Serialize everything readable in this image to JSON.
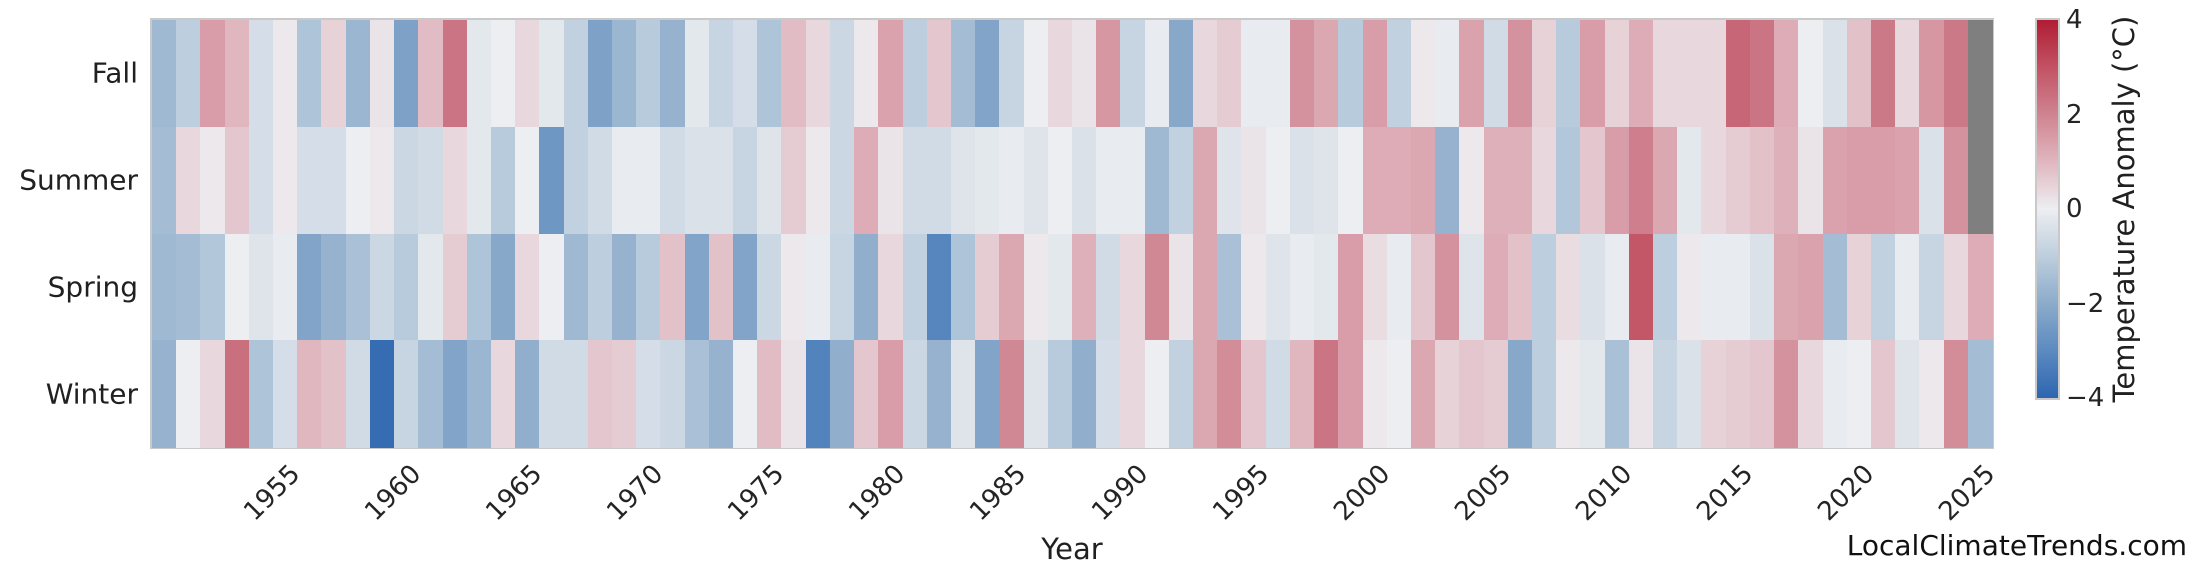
{
  "watermark": "LocalClimateTrends.com",
  "chart_data": {
    "type": "heatmap",
    "title": "",
    "xlabel": "Year",
    "row_categories": [
      "Fall",
      "Summer",
      "Spring",
      "Winter"
    ],
    "x_years": {
      "start": 1950,
      "end": 2025
    },
    "x_tick_labels": [
      "1955",
      "1960",
      "1965",
      "1970",
      "1975",
      "1980",
      "1985",
      "1990",
      "1995",
      "2000",
      "2005",
      "2010",
      "2015",
      "2020",
      "2025"
    ],
    "colorbar": {
      "label": "Temperature Anomaly (°C)",
      "tick_labels": [
        "4",
        "2",
        "0",
        "−2",
        "−4"
      ],
      "tick_values": [
        4,
        2,
        0,
        -2,
        -4
      ],
      "vmin": -4,
      "vmax": 4,
      "position": "right"
    },
    "colormap_stops": [
      {
        "v": -4,
        "c": "#2d66af"
      },
      {
        "v": -3,
        "c": "#5c8ac0"
      },
      {
        "v": -2,
        "c": "#8cabca"
      },
      {
        "v": -1,
        "c": "#bdcede"
      },
      {
        "v": 0,
        "c": "#edeef1"
      },
      {
        "v": 1,
        "c": "#e0b6bf"
      },
      {
        "v": 2,
        "c": "#cf8390"
      },
      {
        "v": 3,
        "c": "#c25264"
      },
      {
        "v": 4,
        "c": "#b01c33"
      }
    ],
    "missing_color": "#7f7f7f",
    "missing_cells": [
      [
        "Fall",
        2025
      ],
      [
        "Summer",
        2025
      ]
    ],
    "grid": false,
    "series": [
      {
        "name": "Fall",
        "values": [
          -1.6,
          -1.0,
          1.5,
          1.0,
          -0.5,
          0.1,
          -1.3,
          0.5,
          -1.7,
          0.2,
          -2.3,
          0.9,
          2.3,
          -0.2,
          0.0,
          0.4,
          -0.2,
          -0.9,
          -2.3,
          -1.7,
          -1.1,
          -1.8,
          -0.2,
          -0.8,
          -0.5,
          -1.3,
          0.9,
          0.4,
          -0.7,
          0.1,
          1.4,
          -1.0,
          0.7,
          -1.5,
          -2.2,
          -0.8,
          0.0,
          0.4,
          0.2,
          1.6,
          -0.8,
          -0.1,
          -2.1,
          0.4,
          0.6,
          -0.1,
          -0.1,
          1.7,
          1.3,
          -1.1,
          1.5,
          -0.9,
          0.1,
          -0.1,
          1.4,
          -0.6,
          1.7,
          0.5,
          -1.1,
          1.5,
          0.5,
          1.2,
          0.4,
          0.4,
          0.4,
          2.6,
          2.3,
          1.2,
          0.0,
          -0.4,
          0.8,
          2.2,
          0.4,
          1.6,
          2.2,
          null
        ]
      },
      {
        "name": "Summer",
        "values": [
          -1.5,
          0.4,
          0.1,
          0.7,
          -0.5,
          0.1,
          -0.5,
          -0.5,
          0.0,
          0.1,
          -0.7,
          -0.6,
          0.4,
          -0.2,
          -1.1,
          0.0,
          -2.6,
          -0.9,
          -0.6,
          -0.1,
          -0.1,
          -0.6,
          -0.4,
          -0.4,
          -0.8,
          -0.3,
          0.6,
          0.1,
          -0.7,
          1.2,
          0.2,
          -0.6,
          -0.6,
          -0.3,
          -0.2,
          -0.1,
          -0.3,
          0.0,
          -0.4,
          -0.1,
          -0.1,
          -1.6,
          -0.9,
          1.3,
          -0.3,
          0.2,
          0.0,
          -0.4,
          -0.3,
          0.0,
          1.2,
          1.2,
          1.3,
          -1.8,
          0.1,
          1.1,
          1.1,
          0.4,
          -1.2,
          0.7,
          1.5,
          2.1,
          1.3,
          -0.2,
          0.4,
          0.6,
          0.8,
          1.1,
          0.2,
          1.4,
          1.5,
          1.5,
          1.4,
          -0.4,
          1.7,
          null
        ]
      },
      {
        "name": "Spring",
        "values": [
          -1.6,
          -1.5,
          -1.2,
          0.0,
          -0.3,
          -0.1,
          -2.2,
          -1.8,
          -1.4,
          -0.7,
          -1.1,
          -0.2,
          0.6,
          -1.3,
          -2.1,
          0.4,
          0.0,
          -1.6,
          -1.0,
          -1.8,
          -1.1,
          0.8,
          -2.2,
          0.8,
          -2.2,
          -0.7,
          0.1,
          -0.1,
          -0.8,
          -1.9,
          0.4,
          -0.9,
          -3.1,
          -1.3,
          0.6,
          1.3,
          0.1,
          -0.2,
          1.1,
          -0.6,
          0.4,
          1.9,
          0.2,
          1.3,
          -1.4,
          0.1,
          -0.3,
          -0.1,
          -0.2,
          1.5,
          0.3,
          -0.1,
          0.7,
          1.7,
          -0.3,
          1.2,
          0.8,
          -1.0,
          0.3,
          -0.4,
          -0.1,
          2.9,
          -1.0,
          0.1,
          -0.1,
          -0.1,
          -0.4,
          1.3,
          1.4,
          -1.5,
          0.5,
          -0.9,
          -0.1,
          -0.8,
          0.4,
          1.2
        ]
      },
      {
        "name": "Winter",
        "values": [
          -1.8,
          0.0,
          0.4,
          2.4,
          -1.3,
          -0.5,
          1.0,
          0.8,
          -0.6,
          -3.8,
          -0.8,
          -1.5,
          -2.2,
          -1.7,
          0.4,
          -1.9,
          -0.6,
          -0.6,
          0.7,
          0.6,
          -0.5,
          -0.7,
          -1.4,
          -1.8,
          0.0,
          0.9,
          0.2,
          -3.2,
          -1.9,
          0.7,
          1.5,
          -0.7,
          -1.8,
          -0.3,
          -2.2,
          1.9,
          -0.3,
          -1.1,
          -1.9,
          -0.5,
          0.4,
          0.0,
          -0.9,
          1.3,
          1.8,
          0.7,
          -0.6,
          1.0,
          2.3,
          1.5,
          0.1,
          0.0,
          1.3,
          0.5,
          0.7,
          0.6,
          -2.1,
          -1.0,
          0.1,
          -0.2,
          -1.4,
          0.2,
          -0.8,
          -0.4,
          0.5,
          0.6,
          0.7,
          1.7,
          0.4,
          -0.1,
          0.0,
          0.7,
          -0.3,
          0.1,
          1.8,
          -1.5
        ]
      }
    ]
  }
}
